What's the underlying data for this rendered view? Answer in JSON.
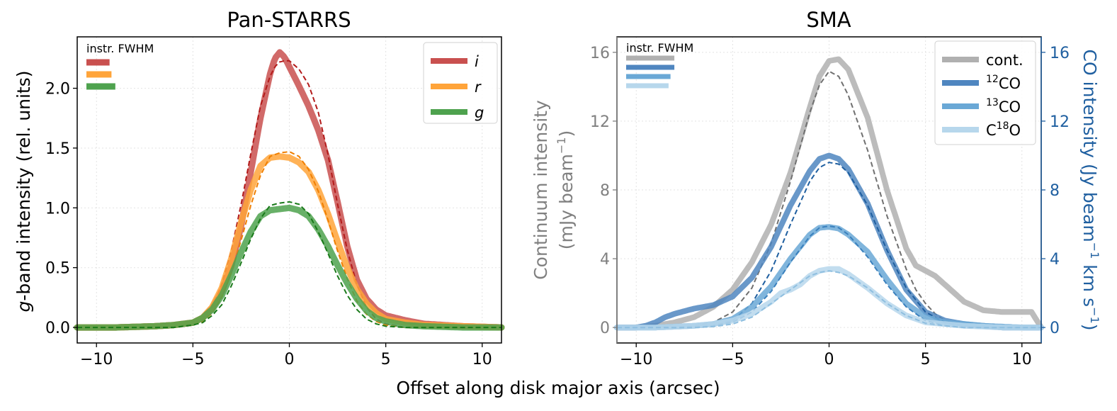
{
  "figure": {
    "xlabel": "Offset along disk major axis (arcsec)"
  },
  "chart_data": [
    {
      "type": "line",
      "title": "Pan-STARRS",
      "xlabel": "Offset along disk major axis (arcsec)",
      "ylabel_italic": "g",
      "ylabel_rest": "-band intensity (rel. units)",
      "xlim": [
        -11,
        11
      ],
      "ylim": [
        -0.13,
        2.43
      ],
      "xticks": [
        -10,
        -5,
        0,
        5,
        10
      ],
      "xtick_labels": [
        "−10",
        "−5",
        "0",
        "5",
        "10"
      ],
      "yticks": [
        0.0,
        0.5,
        1.0,
        1.5,
        2.0
      ],
      "ytick_labels": [
        "0.0",
        "0.5",
        "1.0",
        "1.5",
        "2.0"
      ],
      "grid": true,
      "legend_position": "top-right",
      "fwhm_label": "instr. FWHM",
      "fwhm_bars": [
        {
          "color": "#c9504f",
          "width_arcsec": 1.2
        },
        {
          "color": "#ffa43a",
          "width_arcsec": 1.3
        },
        {
          "color": "#4ea24e",
          "width_arcsec": 1.5
        }
      ],
      "series": [
        {
          "name": "i",
          "color": "#c9504f",
          "fit_color": "#b31b1b",
          "x": [
            -11,
            -9,
            -7,
            -6,
            -5,
            -4.5,
            -4,
            -3.5,
            -3,
            -2.5,
            -2,
            -1.5,
            -1,
            -0.75,
            -0.5,
            -0.25,
            0,
            0.5,
            1,
            1.5,
            2,
            2.5,
            3,
            3.5,
            4,
            4.5,
            5,
            6,
            7,
            8,
            9,
            11
          ],
          "y": [
            0,
            0,
            0.01,
            0.02,
            0.04,
            0.08,
            0.16,
            0.3,
            0.52,
            0.85,
            1.3,
            1.75,
            2.12,
            2.25,
            2.3,
            2.26,
            2.18,
            2.02,
            1.85,
            1.65,
            1.4,
            1.05,
            0.68,
            0.4,
            0.24,
            0.15,
            0.1,
            0.06,
            0.03,
            0.02,
            0.01,
            0
          ],
          "fit_y": [
            0,
            0,
            0,
            0.01,
            0.03,
            0.07,
            0.17,
            0.36,
            0.65,
            1.03,
            1.45,
            1.85,
            2.1,
            2.18,
            2.22,
            2.23,
            2.23,
            2.16,
            2.03,
            1.8,
            1.45,
            1.03,
            0.65,
            0.36,
            0.17,
            0.07,
            0.03,
            0,
            0,
            0,
            0,
            0
          ]
        },
        {
          "name": "r",
          "color": "#ffa43a",
          "fit_color": "#f07f00",
          "x": [
            -11,
            -9,
            -7,
            -6,
            -5,
            -4.5,
            -4,
            -3.5,
            -3,
            -2.5,
            -2,
            -1.5,
            -1,
            -0.5,
            0,
            0.5,
            1,
            1.5,
            2,
            2.5,
            3,
            3.5,
            4,
            4.5,
            5,
            6,
            7,
            9,
            11
          ],
          "y": [
            0,
            0,
            0.01,
            0.02,
            0.04,
            0.08,
            0.17,
            0.33,
            0.58,
            0.88,
            1.15,
            1.35,
            1.42,
            1.43,
            1.42,
            1.38,
            1.3,
            1.15,
            0.95,
            0.72,
            0.5,
            0.32,
            0.2,
            0.12,
            0.07,
            0.04,
            0.02,
            0.01,
            0
          ],
          "fit_y": [
            0,
            0,
            0,
            0,
            0.02,
            0.05,
            0.12,
            0.25,
            0.46,
            0.73,
            1.02,
            1.27,
            1.43,
            1.46,
            1.47,
            1.43,
            1.32,
            1.14,
            0.9,
            0.64,
            0.41,
            0.22,
            0.11,
            0.05,
            0.02,
            0,
            0,
            0,
            0
          ]
        },
        {
          "name": "g",
          "color": "#4ea24e",
          "fit_color": "#1a7a1a",
          "x": [
            -11,
            -9,
            -7,
            -6,
            -5,
            -4.5,
            -4,
            -3.5,
            -3,
            -2.5,
            -2,
            -1.5,
            -1,
            -0.5,
            0,
            0.5,
            1,
            1.5,
            2,
            2.5,
            3,
            3.5,
            4,
            4.5,
            5,
            6,
            7,
            9,
            11
          ],
          "y": [
            0,
            0,
            0.01,
            0.02,
            0.04,
            0.08,
            0.15,
            0.27,
            0.44,
            0.63,
            0.8,
            0.93,
            0.98,
            0.99,
            1.0,
            0.98,
            0.93,
            0.82,
            0.68,
            0.52,
            0.37,
            0.24,
            0.14,
            0.08,
            0.05,
            0.02,
            0.01,
            0,
            0
          ],
          "fit_y": [
            0,
            0,
            0,
            0,
            0.02,
            0.04,
            0.1,
            0.19,
            0.35,
            0.54,
            0.74,
            0.91,
            1.02,
            1.04,
            1.05,
            1.03,
            0.95,
            0.8,
            0.62,
            0.43,
            0.27,
            0.15,
            0.07,
            0.03,
            0.01,
            0,
            0,
            0,
            0
          ]
        }
      ]
    },
    {
      "type": "line",
      "title": "SMA",
      "xlabel": "Offset along disk major axis (arcsec)",
      "ylabel_left_line1": "Continuum intensity",
      "ylabel_left_line2_pre": "(mJy beam",
      "ylabel_left_line2_sup": "−1",
      "ylabel_left_line2_post": ")",
      "ylabel_right_pre": "CO intensity (Jy beam",
      "ylabel_right_sup1": "−1",
      "ylabel_right_mid": " km s",
      "ylabel_right_sup2": "−1",
      "ylabel_right_post": ")",
      "xlim": [
        -11,
        11
      ],
      "ylim": [
        -0.9,
        16.9
      ],
      "xticks": [
        -10,
        -5,
        0,
        5,
        10
      ],
      "xtick_labels": [
        "−10",
        "−5",
        "0",
        "5",
        "10"
      ],
      "yticks": [
        0,
        4,
        8,
        12,
        16
      ],
      "ytick_labels": [
        "0",
        "4",
        "8",
        "12",
        "16"
      ],
      "left_axis_color": "#808080",
      "right_axis_color": "#1f5fa0",
      "grid": true,
      "legend_position": "top-right",
      "fwhm_label": "instr. FWHM",
      "fwhm_bars": [
        {
          "color": "#b0b0b0",
          "width_arcsec": 2.5
        },
        {
          "color": "#4f86c0",
          "width_arcsec": 2.5
        },
        {
          "color": "#6aa8d6",
          "width_arcsec": 2.3
        },
        {
          "color": "#b7d7ec",
          "width_arcsec": 2.2
        }
      ],
      "series": [
        {
          "name": "cont.",
          "label_pre": "cont.",
          "label_sup": "",
          "label_post": "",
          "color": "#b0b0b0",
          "fit_color": "#707070",
          "x": [
            -11,
            -10,
            -9,
            -8,
            -7,
            -6,
            -5,
            -4,
            -3,
            -2,
            -1,
            -0.5,
            0,
            0.5,
            1,
            2,
            3,
            4,
            4.5,
            5,
            5.5,
            6,
            7,
            8,
            9,
            10,
            10.5,
            11
          ],
          "y": [
            0,
            0,
            0.1,
            0.3,
            0.6,
            1.2,
            2.2,
            3.8,
            6.0,
            9.0,
            12.8,
            14.6,
            15.5,
            15.6,
            15.0,
            12.2,
            8.0,
            4.6,
            3.6,
            3.3,
            3.0,
            2.5,
            1.5,
            1.0,
            0.9,
            0.9,
            0.9,
            0
          ],
          "fit_y": [
            0,
            0,
            0,
            0,
            0.1,
            0.3,
            0.9,
            2.3,
            4.9,
            8.5,
            12.5,
            14.1,
            14.9,
            14.6,
            13.5,
            10.3,
            6.5,
            3.4,
            2.2,
            1.4,
            0.8,
            0.4,
            0.1,
            0,
            0,
            0,
            0,
            0
          ]
        },
        {
          "name": "12CO",
          "label_pre": "",
          "label_sup": "12",
          "label_post": "CO",
          "color": "#4f86c0",
          "fit_color": "#1f5fa0",
          "x": [
            -11,
            -10,
            -9.5,
            -9,
            -8.5,
            -8,
            -7,
            -6,
            -5,
            -4,
            -3,
            -2,
            -1,
            -0.5,
            0,
            0.5,
            1,
            2,
            3,
            4,
            5,
            6,
            7,
            8,
            9,
            10,
            11
          ],
          "y": [
            0,
            0,
            0.1,
            0.3,
            0.6,
            0.8,
            1.1,
            1.3,
            1.8,
            2.9,
            4.7,
            7.1,
            9.1,
            9.8,
            10.0,
            9.8,
            9.2,
            7.2,
            4.5,
            2.2,
            0.9,
            0.4,
            0.2,
            0.1,
            0,
            0,
            0
          ],
          "fit_y": [
            0,
            0,
            0,
            0,
            0,
            0,
            0,
            0.1,
            0.4,
            1.4,
            3.3,
            6.0,
            8.5,
            9.3,
            9.6,
            9.5,
            9.0,
            7.1,
            4.5,
            2.3,
            0.9,
            0.3,
            0.1,
            0,
            0,
            0,
            0
          ]
        },
        {
          "name": "13CO",
          "label_pre": "",
          "label_sup": "13",
          "label_post": "CO",
          "color": "#6aa8d6",
          "fit_color": "#3a80bd",
          "x": [
            -11,
            -10,
            -9,
            -8,
            -7,
            -6,
            -5,
            -4,
            -3,
            -2,
            -1,
            -0.5,
            0,
            0.5,
            1,
            2,
            3,
            4,
            5,
            6,
            7,
            8,
            9,
            10,
            11
          ],
          "y": [
            0,
            0,
            0,
            0.05,
            0.1,
            0.2,
            0.5,
            1.2,
            2.4,
            4.0,
            5.4,
            5.8,
            5.85,
            5.75,
            5.4,
            4.4,
            2.8,
            1.4,
            0.6,
            0.3,
            0.2,
            0.1,
            0.05,
            0,
            0
          ],
          "fit_y": [
            0,
            0,
            0,
            0,
            0,
            0.1,
            0.3,
            0.9,
            2.1,
            3.8,
            5.3,
            5.8,
            5.9,
            5.8,
            5.4,
            4.1,
            2.5,
            1.2,
            0.4,
            0.1,
            0,
            0,
            0,
            0,
            0
          ]
        },
        {
          "name": "C18O",
          "label_pre": "C",
          "label_sup": "18",
          "label_post": "O",
          "color": "#b7d7ec",
          "fit_color": "#8fbfe0",
          "x": [
            -11,
            -10,
            -9,
            -8,
            -7,
            -6,
            -5,
            -4,
            -3,
            -2.5,
            -2,
            -1.5,
            -1,
            -0.5,
            0,
            0.5,
            1,
            2,
            3,
            4,
            5,
            6,
            7,
            8,
            9,
            10,
            11
          ],
          "y": [
            0,
            0,
            0,
            0.05,
            0.1,
            0.2,
            0.4,
            0.8,
            1.5,
            2.0,
            2.2,
            2.5,
            3.0,
            3.3,
            3.4,
            3.4,
            3.1,
            2.3,
            1.4,
            0.7,
            0.3,
            0.2,
            0.1,
            0.05,
            0,
            0,
            0
          ],
          "fit_y": [
            0,
            0,
            0,
            0,
            0,
            0.05,
            0.2,
            0.6,
            1.4,
            1.8,
            2.2,
            2.6,
            3.0,
            3.2,
            3.3,
            3.2,
            3.0,
            2.3,
            1.4,
            0.7,
            0.25,
            0.1,
            0,
            0,
            0,
            0,
            0
          ]
        }
      ]
    }
  ]
}
